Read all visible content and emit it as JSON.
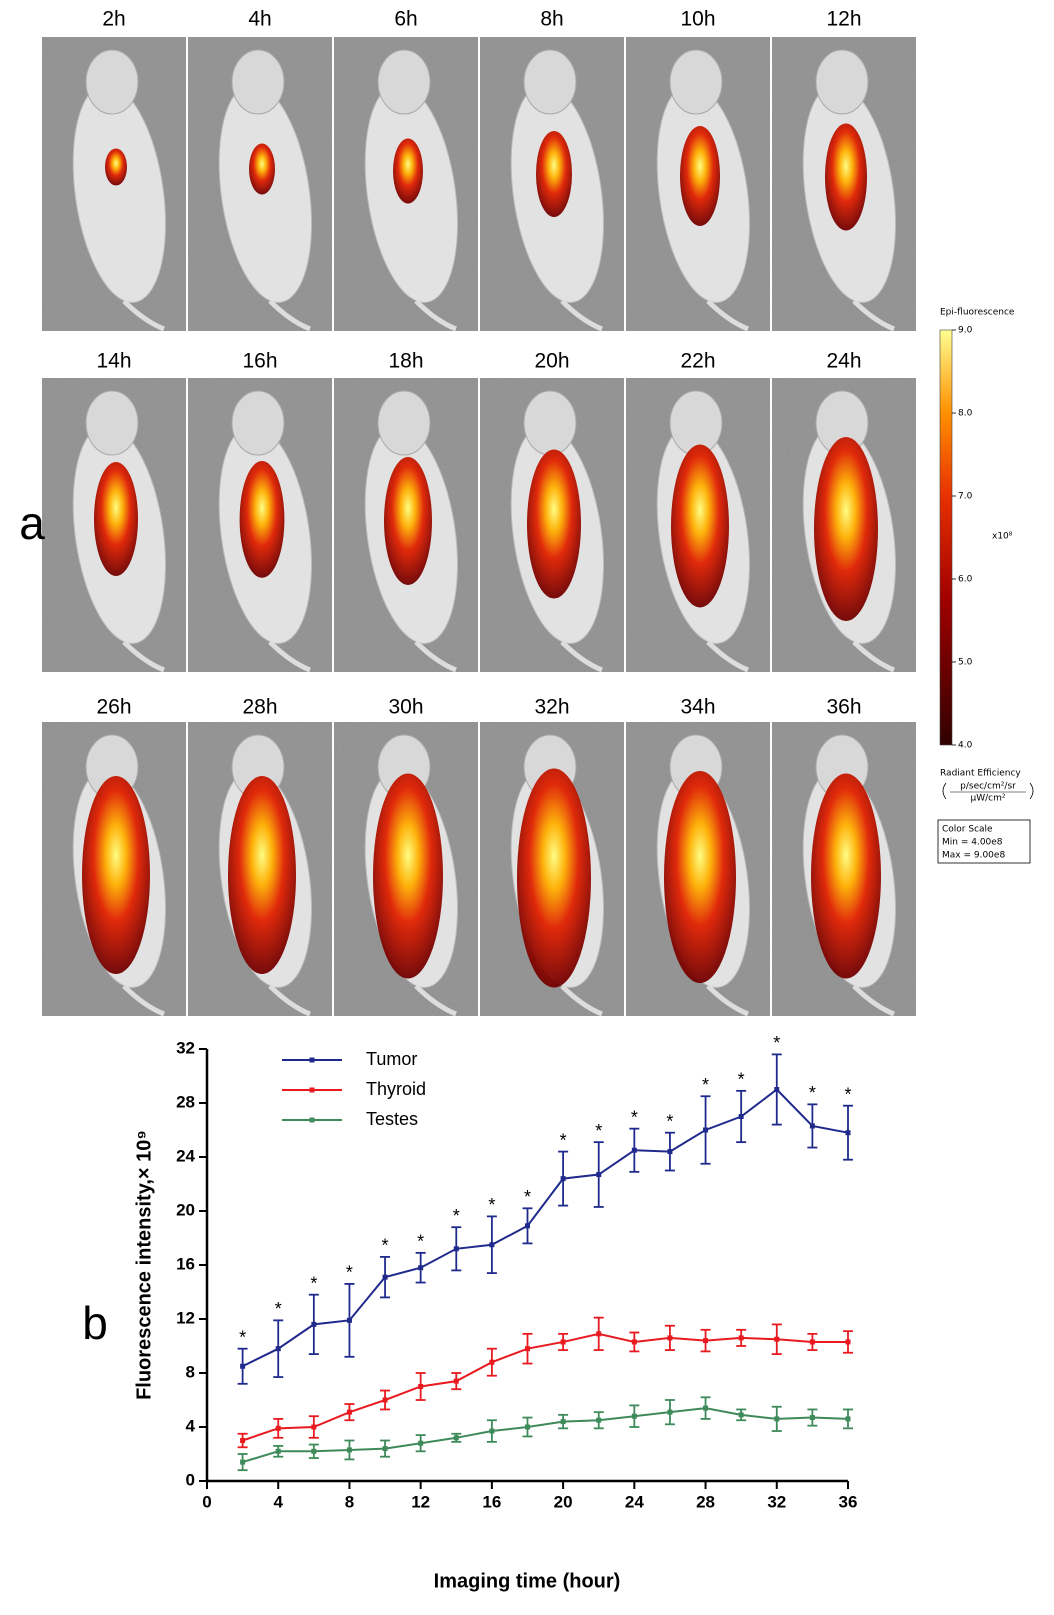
{
  "panel_a": {
    "label": "a",
    "time_labels": [
      "2h",
      "4h",
      "6h",
      "8h",
      "10h",
      "12h",
      "14h",
      "16h",
      "18h",
      "20h",
      "22h",
      "24h",
      "26h",
      "28h",
      "30h",
      "32h",
      "34h",
      "36h"
    ],
    "color_scale": {
      "title": "Epi-fluorescence",
      "range": [
        4,
        9
      ],
      "ticks": [
        {
          "value": 4,
          "label": "4.0"
        },
        {
          "value": 5,
          "label": "5.0"
        },
        {
          "value": 6,
          "label": "6.0"
        },
        {
          "value": 7,
          "label": "7.0"
        },
        {
          "value": 8,
          "label": "8.0"
        },
        {
          "value": 9,
          "label": "9.0"
        }
      ],
      "multiplier": "x10⁸",
      "quantity": "Radiant Efficiency",
      "unit_numerator": "p/sec/cm²/sr",
      "unit_denominator": "μW/cm²",
      "box_title": "Color Scale",
      "box_min": "Min = 4.00e8",
      "box_max": "Max = 9.00e8"
    }
  },
  "panel_b": {
    "label": "b"
  },
  "chart_data": {
    "type": "line",
    "x_label": "Imaging time (hour)",
    "y_label": "Fluorescence intensity,× 10⁹",
    "xlim": [
      0,
      36
    ],
    "ylim": [
      0,
      32
    ],
    "xticks": [
      0,
      4,
      8,
      12,
      16,
      20,
      24,
      28,
      32,
      36
    ],
    "yticks": [
      0,
      4,
      8,
      12,
      16,
      20,
      24,
      28,
      32
    ],
    "legend": "upper left",
    "x": [
      2,
      4,
      6,
      8,
      10,
      12,
      14,
      16,
      18,
      20,
      22,
      24,
      26,
      28,
      30,
      32,
      34,
      36
    ],
    "series": [
      {
        "name": "Tumor",
        "color": "#1f2a8c",
        "significance": "*",
        "values": [
          8.5,
          9.8,
          11.6,
          11.9,
          15.1,
          15.8,
          17.2,
          17.5,
          18.9,
          22.4,
          22.7,
          24.5,
          24.4,
          26.0,
          27.0,
          29.0,
          26.3,
          25.8
        ],
        "errors": [
          1.3,
          2.1,
          2.2,
          2.7,
          1.5,
          1.1,
          1.6,
          2.1,
          1.3,
          2.0,
          2.4,
          1.6,
          1.4,
          2.5,
          1.9,
          2.6,
          1.6,
          2.0
        ]
      },
      {
        "name": "Thyroid",
        "color": "#e8191f",
        "values": [
          3.0,
          3.9,
          4.0,
          5.1,
          6.0,
          7.0,
          7.4,
          8.8,
          9.8,
          10.3,
          10.9,
          10.3,
          10.6,
          10.4,
          10.6,
          10.5,
          10.3,
          10.3
        ],
        "errors": [
          0.5,
          0.7,
          0.8,
          0.6,
          0.7,
          1.0,
          0.6,
          1.0,
          1.1,
          0.6,
          1.2,
          0.7,
          0.9,
          0.8,
          0.6,
          1.1,
          0.6,
          0.8
        ]
      },
      {
        "name": "Testes",
        "color": "#3e8a5a",
        "values": [
          1.4,
          2.2,
          2.2,
          2.3,
          2.4,
          2.8,
          3.2,
          3.7,
          4.0,
          4.4,
          4.5,
          4.8,
          5.1,
          5.4,
          4.9,
          4.6,
          4.7,
          4.6
        ],
        "errors": [
          0.6,
          0.4,
          0.5,
          0.7,
          0.6,
          0.6,
          0.3,
          0.8,
          0.7,
          0.5,
          0.6,
          0.8,
          0.9,
          0.8,
          0.4,
          0.9,
          0.6,
          0.7
        ]
      }
    ]
  }
}
